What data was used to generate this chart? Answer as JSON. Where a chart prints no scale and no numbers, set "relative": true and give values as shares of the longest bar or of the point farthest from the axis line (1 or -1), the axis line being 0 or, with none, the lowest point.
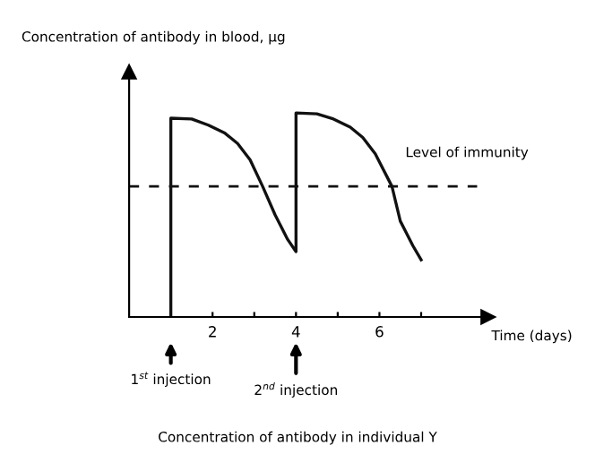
{
  "chart_data": {
    "type": "line",
    "relative": true,
    "title": "Concentration of antibody in individual Y",
    "xlabel": "Time (days)",
    "xlim": [
      0,
      8.6
    ],
    "xticks": [
      {
        "value": 1,
        "label": null
      },
      2,
      {
        "value": 3,
        "label": null
      },
      4,
      {
        "value": 5,
        "label": null
      },
      6,
      {
        "value": 7,
        "label": null
      }
    ],
    "series": [
      {
        "color": "#111111",
        "x": [
          1,
          1,
          1.5,
          1.9,
          2.3,
          2.6,
          2.9,
          3.2,
          3.5,
          3.8,
          4,
          4,
          4.5,
          4.9,
          5.3,
          5.6,
          5.9,
          6.3,
          6.5,
          6.8,
          7
        ],
        "values": [
          0,
          0.974,
          0.97,
          0.94,
          0.9,
          0.85,
          0.77,
          0.64,
          0.5,
          0.38,
          0.32,
          1,
          0.995,
          0.97,
          0.93,
          0.88,
          0.8,
          0.64,
          0.47,
          0.35,
          0.28
        ]
      }
    ],
    "ref_lines": [
      {
        "axis": "y",
        "value": 0.64,
        "label": "Level of immunity",
        "color": "#111111",
        "line_style": "dashed"
      }
    ],
    "annotations": [
      "Concentration of antibody in blood, µg",
      "1$^{st}$ injection",
      "2$^{nd}$ injection"
    ],
    "grid": false,
    "legend": false,
    "marker": "none",
    "line_style": "solid"
  }
}
